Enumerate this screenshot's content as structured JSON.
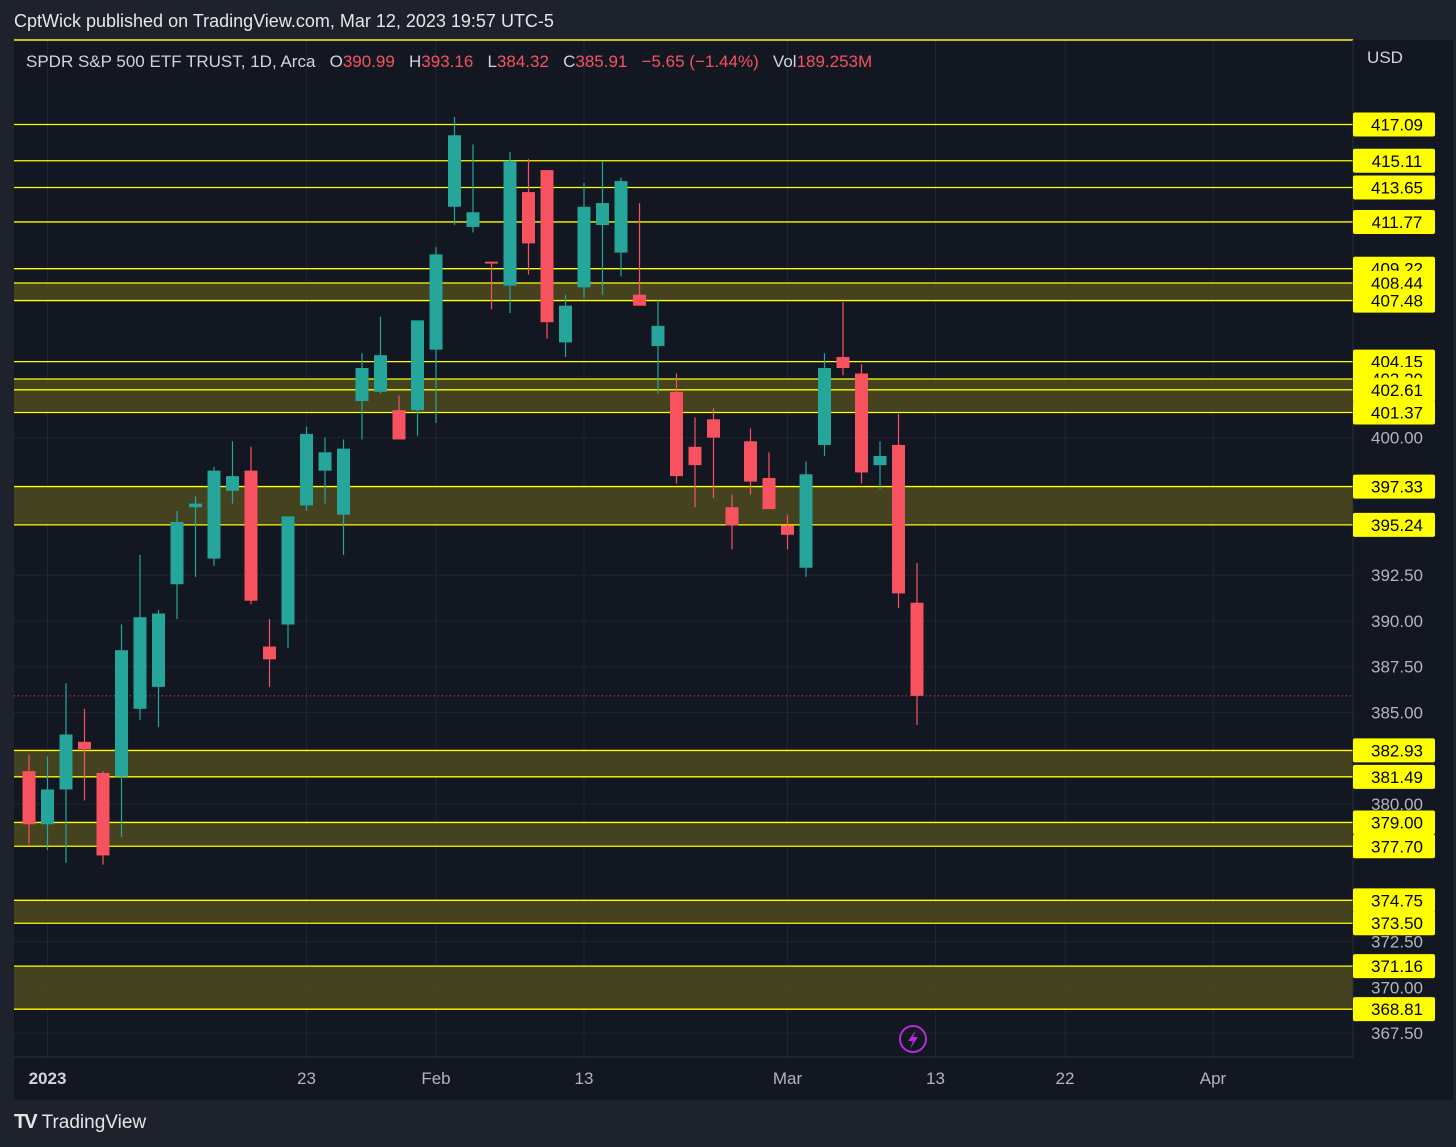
{
  "header": {
    "publisher_line": "CptWick published on TradingView.com, Mar 12, 2023 19:57 UTC-5"
  },
  "legend": {
    "symbol": "SPDR S&P 500 ETF TRUST, 1D, Arca",
    "open_label": "O",
    "open": "390.99",
    "high_label": "H",
    "high": "393.16",
    "low_label": "L",
    "low": "384.32",
    "close_label": "C",
    "close": "385.91",
    "change": "−5.65 (−1.44%)",
    "vol_label": "Vol",
    "vol": "189.253M"
  },
  "footer": {
    "brand": "TradingView",
    "logo_icon": "tradingview-logo-icon"
  },
  "colors": {
    "up": "#26a69a",
    "down": "#f7525f",
    "level": "#ffff00",
    "zone_fill": "#4d4a1f",
    "bg": "#131722",
    "grid": "#1f2430",
    "axis_text": "#b2b5be"
  },
  "chart_data": {
    "type": "candlestick",
    "currency": "USD",
    "ylim": [
      366.2,
      421.7
    ],
    "y_ticks": [
      "367.50",
      "370.00",
      "372.50",
      "380.00",
      "385.00",
      "387.50",
      "390.00",
      "392.50",
      "400.00"
    ],
    "x_tick_labels": [
      {
        "label": "2023",
        "bold": true,
        "idx": 1
      },
      {
        "label": "23",
        "idx": 15
      },
      {
        "label": "Feb",
        "idx": 22
      },
      {
        "label": "13",
        "idx": 30
      },
      {
        "label": "Mar",
        "idx": 41
      },
      {
        "label": "13",
        "idx": 49
      },
      {
        "label": "22",
        "idx": 56
      },
      {
        "label": "Apr",
        "idx": 64
      }
    ],
    "candles": [
      {
        "o": 381.8,
        "h": 382.7,
        "l": 377.8,
        "c": 378.9
      },
      {
        "o": 378.9,
        "h": 382.6,
        "l": 377.5,
        "c": 380.8
      },
      {
        "o": 380.8,
        "h": 386.6,
        "l": 376.8,
        "c": 383.8
      },
      {
        "o": 383.4,
        "h": 385.2,
        "l": 380.2,
        "c": 383.0
      },
      {
        "o": 381.7,
        "h": 381.8,
        "l": 376.7,
        "c": 377.2
      },
      {
        "o": 381.5,
        "h": 389.8,
        "l": 378.2,
        "c": 388.4
      },
      {
        "o": 385.2,
        "h": 393.6,
        "l": 384.6,
        "c": 390.2
      },
      {
        "o": 386.4,
        "h": 390.6,
        "l": 384.2,
        "c": 390.4
      },
      {
        "o": 392.0,
        "h": 396.0,
        "l": 390.1,
        "c": 395.4
      },
      {
        "o": 396.2,
        "h": 396.8,
        "l": 392.4,
        "c": 396.4
      },
      {
        "o": 393.4,
        "h": 398.4,
        "l": 393.0,
        "c": 398.2
      },
      {
        "o": 397.1,
        "h": 399.8,
        "l": 396.4,
        "c": 397.9
      },
      {
        "o": 398.2,
        "h": 399.5,
        "l": 390.9,
        "c": 391.1
      },
      {
        "o": 388.6,
        "h": 390.1,
        "l": 386.4,
        "c": 387.9
      },
      {
        "o": 389.8,
        "h": 395.2,
        "l": 388.5,
        "c": 395.7
      },
      {
        "o": 396.3,
        "h": 400.6,
        "l": 396.0,
        "c": 400.2
      },
      {
        "o": 398.2,
        "h": 400.0,
        "l": 396.4,
        "c": 399.2
      },
      {
        "o": 395.8,
        "h": 399.9,
        "l": 393.6,
        "c": 399.4
      },
      {
        "o": 402.0,
        "h": 404.6,
        "l": 399.9,
        "c": 403.8
      },
      {
        "o": 402.5,
        "h": 406.6,
        "l": 402.4,
        "c": 404.5
      },
      {
        "o": 401.5,
        "h": 402.3,
        "l": 400.2,
        "c": 399.9
      },
      {
        "o": 401.5,
        "h": 406.0,
        "l": 400.1,
        "c": 406.4
      },
      {
        "o": 404.8,
        "h": 410.4,
        "l": 400.8,
        "c": 410.0
      },
      {
        "o": 412.6,
        "h": 417.5,
        "l": 411.6,
        "c": 416.5
      },
      {
        "o": 411.5,
        "h": 416.0,
        "l": 411.2,
        "c": 412.3
      },
      {
        "o": 409.6,
        "h": 409.6,
        "l": 407.0,
        "c": 409.5
      },
      {
        "o": 408.3,
        "h": 415.6,
        "l": 406.8,
        "c": 415.1
      },
      {
        "o": 413.4,
        "h": 415.2,
        "l": 408.9,
        "c": 410.6
      },
      {
        "o": 414.6,
        "h": 414.6,
        "l": 405.4,
        "c": 406.3
      },
      {
        "o": 405.2,
        "h": 407.8,
        "l": 404.4,
        "c": 407.2
      },
      {
        "o": 408.2,
        "h": 413.9,
        "l": 407.6,
        "c": 412.6
      },
      {
        "o": 411.6,
        "h": 415.1,
        "l": 407.8,
        "c": 412.8
      },
      {
        "o": 410.1,
        "h": 414.2,
        "l": 408.8,
        "c": 414.0
      },
      {
        "o": 407.8,
        "h": 412.8,
        "l": 407.5,
        "c": 407.2
      },
      {
        "o": 405.0,
        "h": 407.5,
        "l": 402.4,
        "c": 406.1
      },
      {
        "o": 402.5,
        "h": 403.5,
        "l": 397.5,
        "c": 397.9
      },
      {
        "o": 399.5,
        "h": 401.1,
        "l": 396.2,
        "c": 398.5
      },
      {
        "o": 401.0,
        "h": 401.6,
        "l": 396.7,
        "c": 400.0
      },
      {
        "o": 396.2,
        "h": 396.9,
        "l": 393.9,
        "c": 395.2
      },
      {
        "o": 399.8,
        "h": 400.5,
        "l": 396.9,
        "c": 397.6
      },
      {
        "o": 397.8,
        "h": 399.2,
        "l": 396.2,
        "c": 396.1
      },
      {
        "o": 395.2,
        "h": 395.8,
        "l": 393.9,
        "c": 394.7
      },
      {
        "o": 392.9,
        "h": 398.7,
        "l": 392.4,
        "c": 398.0
      },
      {
        "o": 399.6,
        "h": 404.6,
        "l": 399.0,
        "c": 403.8
      },
      {
        "o": 404.4,
        "h": 407.4,
        "l": 403.4,
        "c": 403.8
      },
      {
        "o": 403.5,
        "h": 404.0,
        "l": 397.5,
        "c": 398.1
      },
      {
        "o": 398.5,
        "h": 399.8,
        "l": 397.2,
        "c": 399.0
      },
      {
        "o": 399.6,
        "h": 401.3,
        "l": 390.7,
        "c": 391.5
      },
      {
        "o": 390.99,
        "h": 393.16,
        "l": 384.32,
        "c": 385.91
      }
    ],
    "last_price": 385.91,
    "levels": [
      "417.09",
      "415.11",
      "413.65",
      "411.77",
      "409.22",
      "408.44",
      "407.48",
      "404.15",
      "403.20",
      "402.61",
      "401.37",
      "397.33",
      "395.24",
      "382.93",
      "381.49",
      "379.00",
      "377.70",
      "374.75",
      "373.50",
      "371.16",
      "368.81"
    ],
    "zones": [
      [
        407.48,
        408.44
      ],
      [
        402.61,
        403.2
      ],
      [
        401.37,
        402.61
      ],
      [
        395.24,
        397.33
      ],
      [
        381.49,
        382.93
      ],
      [
        377.7,
        379.0
      ],
      [
        373.5,
        374.75
      ],
      [
        368.81,
        371.16
      ]
    ]
  }
}
